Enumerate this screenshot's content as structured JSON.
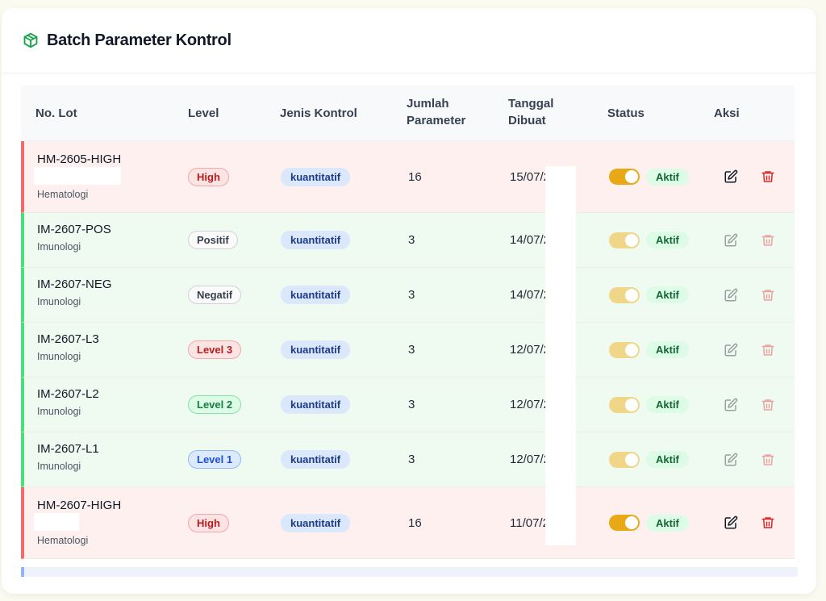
{
  "header": {
    "title": "Batch Parameter Kontrol",
    "icon": "box-icon",
    "accent": "#16a34a"
  },
  "table": {
    "columns": {
      "lot": "No. Lot",
      "level": "Level",
      "jenis": "Jenis Kontrol",
      "jumlah_1": "Jumlah",
      "jumlah_2": "Parameter",
      "tanggal_1": "Tanggal",
      "tanggal_2": "Dibuat",
      "status": "Status",
      "aksi": "Aksi"
    },
    "rows": [
      {
        "lot": "HM-2605-HIGH",
        "dept": "Hematologi",
        "level": "High",
        "jenis": "kuantitatif",
        "jumlah": "16",
        "tanggal": "15/07/2",
        "status": "Aktif"
      },
      {
        "lot": "IM-2607-POS",
        "dept": "Imunologi",
        "level": "Positif",
        "jenis": "kuantitatif",
        "jumlah": "3",
        "tanggal": "14/07/2",
        "status": "Aktif"
      },
      {
        "lot": "IM-2607-NEG",
        "dept": "Imunologi",
        "level": "Negatif",
        "jenis": "kuantitatif",
        "jumlah": "3",
        "tanggal": "14/07/2",
        "status": "Aktif"
      },
      {
        "lot": "IM-2607-L3",
        "dept": "Imunologi",
        "level": "Level 3",
        "jenis": "kuantitatif",
        "jumlah": "3",
        "tanggal": "12/07/2",
        "status": "Aktif"
      },
      {
        "lot": "IM-2607-L2",
        "dept": "Imunologi",
        "level": "Level 2",
        "jenis": "kuantitatif",
        "jumlah": "3",
        "tanggal": "12/07/2",
        "status": "Aktif"
      },
      {
        "lot": "IM-2607-L1",
        "dept": "Imunologi",
        "level": "Level 1",
        "jenis": "kuantitatif",
        "jumlah": "3",
        "tanggal": "12/07/2",
        "status": "Aktif"
      },
      {
        "lot": "HM-2607-HIGH",
        "dept": "Hematologi",
        "level": "High",
        "jenis": "kuantitatif",
        "jumlah": "16",
        "tanggal": "11/07/2",
        "status": "Aktif"
      }
    ]
  },
  "colors": {
    "row_pink": "#fdf0ee",
    "row_green": "#effaf1",
    "toggle_on": "#e9a917",
    "edit": "#111827",
    "delete": "#dc2626"
  },
  "icons": {
    "edit": "edit-icon",
    "delete": "trash-icon"
  }
}
